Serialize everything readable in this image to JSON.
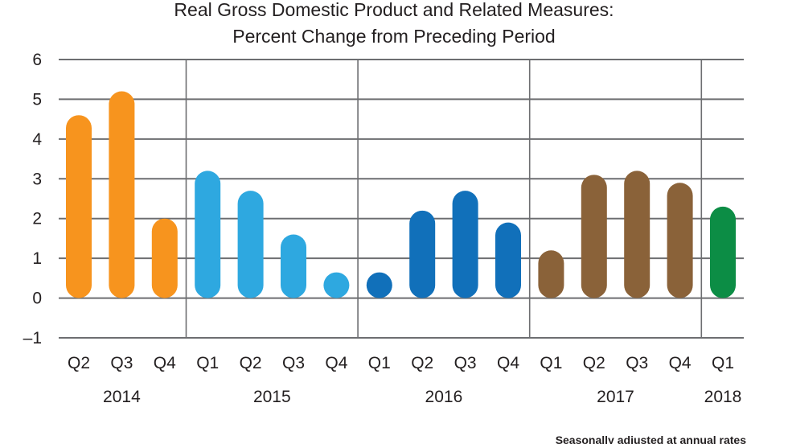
{
  "chart_data": {
    "type": "bar",
    "title": [
      "Real Gross Domestic Product and Related Measures:",
      "Percent Change from Preceding Period"
    ],
    "xlabel": "",
    "ylabel": "",
    "ylim": [
      -1,
      6
    ],
    "yticks": [
      6,
      5,
      4,
      3,
      2,
      1,
      0,
      -1
    ],
    "ytick_labels": [
      "6",
      "5",
      "4",
      "3",
      "2",
      "1",
      "0",
      "–1"
    ],
    "grid": true,
    "categories": [
      "Q2",
      "Q3",
      "Q4",
      "Q1",
      "Q2",
      "Q3",
      "Q4",
      "Q1",
      "Q2",
      "Q3",
      "Q4",
      "Q1",
      "Q2",
      "Q3",
      "Q4",
      "Q1"
    ],
    "years": [
      {
        "label": "2014",
        "count": 3
      },
      {
        "label": "2015",
        "count": 4
      },
      {
        "label": "2016",
        "count": 4
      },
      {
        "label": "2017",
        "count": 4
      },
      {
        "label": "2018",
        "count": 1
      }
    ],
    "values": [
      4.6,
      5.2,
      2.0,
      3.2,
      2.7,
      1.6,
      0.6,
      0.6,
      2.2,
      2.7,
      1.9,
      1.2,
      3.1,
      3.2,
      2.9,
      2.3
    ],
    "year_colors": {
      "2014": "#F7941E",
      "2015": "#2EA8E0",
      "2016": "#1170BA",
      "2017": "#8A6239",
      "2018": "#0C8D45"
    },
    "footnote": "Seasonally adjusted at annual rates"
  }
}
